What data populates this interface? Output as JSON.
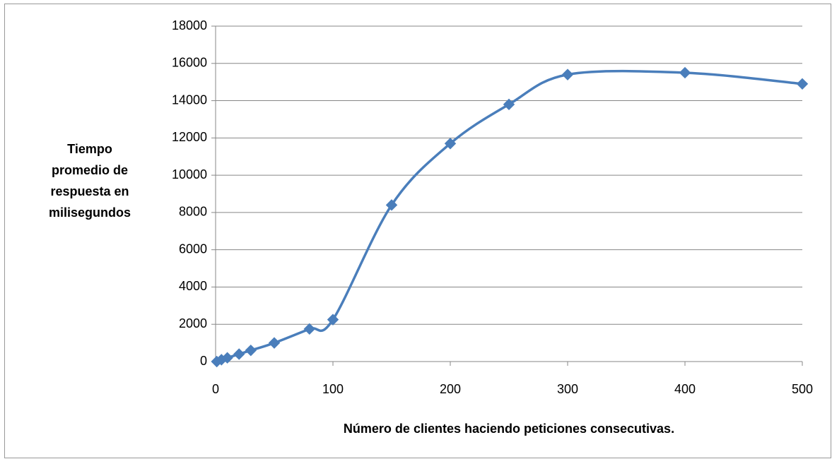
{
  "chart_data": {
    "type": "line",
    "x_label": "Número de clientes haciendo peticiones consecutivas.",
    "y_label": "Tiempo promedio de respuesta en milisegundos",
    "x": [
      1,
      5,
      10,
      20,
      30,
      50,
      80,
      100,
      150,
      200,
      250,
      300,
      400,
      500
    ],
    "series": [
      {
        "color": "#4a7ebb",
        "values": [
          0,
          100,
          200,
          400,
          600,
          1000,
          1750,
          2250,
          8400,
          11700,
          13800,
          15400,
          15500,
          14900
        ]
      }
    ],
    "xlim": [
      0,
      500
    ],
    "xticks": [
      0,
      100,
      200,
      300,
      400,
      500
    ],
    "ylim": [
      0,
      18000
    ],
    "yticks": [
      0,
      2000,
      4000,
      6000,
      8000,
      10000,
      12000,
      14000,
      16000,
      18000
    ],
    "grid": true,
    "smooth": true
  }
}
